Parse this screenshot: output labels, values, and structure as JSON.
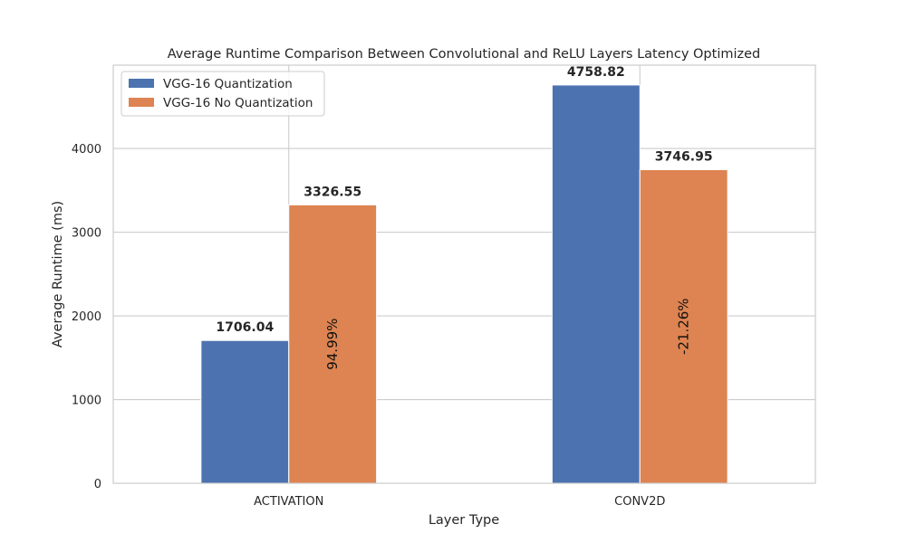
{
  "colors": {
    "series_1": "#4c72b0",
    "series_2": "#dd8452",
    "grid": "#cccccc",
    "frame": "#cccccc",
    "background": "#ffffff"
  },
  "chart_data": {
    "type": "bar",
    "title": "Average Runtime Comparison Between Convolutional and ReLU Layers Latency Optimized",
    "xlabel": "Layer Type",
    "ylabel": "Average Runtime (ms)",
    "categories": [
      "ACTIVATION",
      "CONV2D"
    ],
    "series": [
      {
        "name": "VGG-16 Quantization",
        "values": [
          1706.04,
          4758.82
        ],
        "value_labels": [
          "1706.04",
          "4758.82"
        ]
      },
      {
        "name": "VGG-16 No Quantization",
        "values": [
          3326.55,
          3746.95
        ],
        "value_labels": [
          "3326.55",
          "3746.95"
        ]
      }
    ],
    "percent_change_labels": [
      "94.99%",
      "-21.26%"
    ],
    "ylim": [
      0,
      4996
    ],
    "yticks": [
      0,
      1000,
      2000,
      3000,
      4000
    ],
    "ytick_labels": [
      "0",
      "1000",
      "2000",
      "3000",
      "4000"
    ],
    "grid": true,
    "legend_position": "top-left"
  }
}
